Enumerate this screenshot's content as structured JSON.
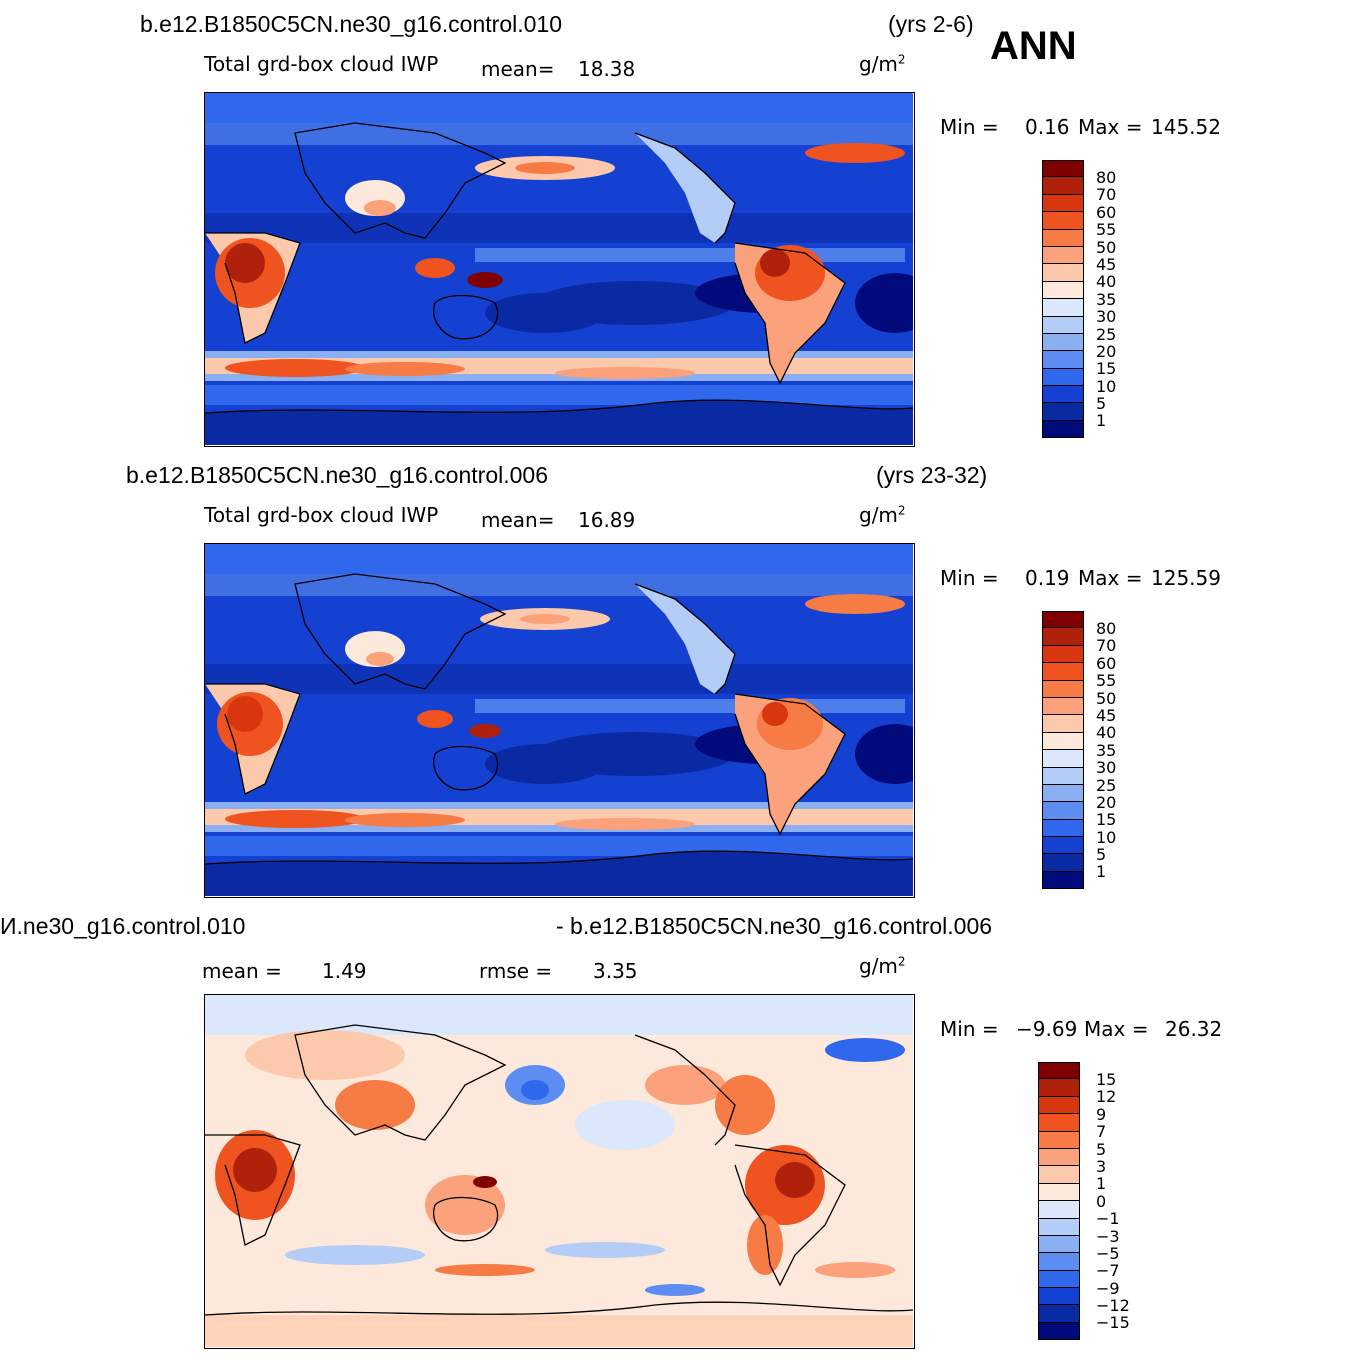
{
  "season": "ANN",
  "panels": [
    {
      "case": "b.e12.B1850C5CN.ne30_g16.control.010",
      "years": "(yrs 2-6)",
      "variable": "Total grd-box cloud IWP",
      "mean_label": "mean=",
      "mean_value": "18.38",
      "units": "g/m",
      "units_sup": "2",
      "min_label": "Min =",
      "min_value": "0.16",
      "max_label": "Max =",
      "max_value": "145.52",
      "levels": [
        "80",
        "70",
        "60",
        "55",
        "50",
        "45",
        "40",
        "35",
        "30",
        "25",
        "20",
        "15",
        "10",
        "5",
        "1"
      ]
    },
    {
      "case": "b.e12.B1850C5CN.ne30_g16.control.006",
      "years": "(yrs 23-32)",
      "variable": "Total grd-box cloud IWP",
      "mean_label": "mean=",
      "mean_value": "16.89",
      "units": "g/m",
      "units_sup": "2",
      "min_label": "Min =",
      "min_value": "0.19",
      "max_label": "Max =",
      "max_value": "125.59",
      "levels": [
        "80",
        "70",
        "60",
        "55",
        "50",
        "45",
        "40",
        "35",
        "30",
        "25",
        "20",
        "15",
        "10",
        "5",
        "1"
      ]
    },
    {
      "case_left": "И.ne30_g16.control.010",
      "case_right": "- b.e12.B1850C5CN.ne30_g16.control.006",
      "mean_label": "mean =",
      "mean_value": "1.49",
      "rmse_label": "rmse =",
      "rmse_value": "3.35",
      "units": "g/m",
      "units_sup": "2",
      "min_label": "Min =",
      "min_value": "−9.69",
      "max_label": "Max =",
      "max_value": "26.32",
      "levels": [
        "15",
        "12",
        "9",
        "7",
        "5",
        "3",
        "1",
        "0",
        "−1",
        "−3",
        "−5",
        "−7",
        "−9",
        "−12",
        "−15"
      ]
    }
  ],
  "colors": {
    "abs_scale": [
      "#7f0000",
      "#b0210b",
      "#d8360f",
      "#ef5420",
      "#f77b45",
      "#fba27c",
      "#fdc9ac",
      "#fde9db",
      "#dbe8fb",
      "#b3cdf7",
      "#8ab0f2",
      "#5d8df0",
      "#2f68ec",
      "#1541d2",
      "#0a2aa4",
      "#000a7a"
    ],
    "diff_scale": [
      "#7f0000",
      "#b0210b",
      "#d8360f",
      "#ef5420",
      "#f77b45",
      "#fba27c",
      "#fdc9ac",
      "#fde9db",
      "#dbe8fb",
      "#b3cdf7",
      "#8ab0f2",
      "#5d8df0",
      "#2f68ec",
      "#1541d2",
      "#0a2aa4",
      "#000a7a"
    ]
  }
}
